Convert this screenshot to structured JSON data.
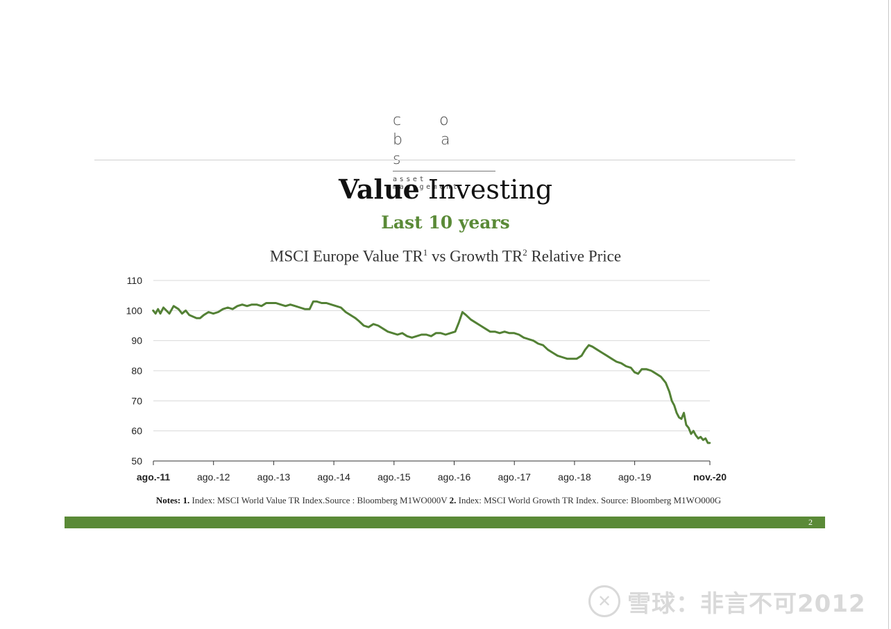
{
  "brand": {
    "name": "c o b a s",
    "tagline": "asset management"
  },
  "title": {
    "bold": "Value",
    "light": "Investing"
  },
  "subtitle": "Last 10 years",
  "chart_title": {
    "part1": "MSCI Europe Value TR",
    "sup1": "1",
    "part2": " vs Growth TR",
    "sup2": "2",
    "part3": " Relative Price"
  },
  "notes": {
    "label": "Notes:",
    "n1": "1.",
    "t1": " Index: MSCI World Value TR Index.Source : Bloomberg M1WO000V ",
    "n2": "2.",
    "t2": " Index: MSCI World Growth TR Index. Source: Bloomberg M1WO000G"
  },
  "page_number": "2",
  "watermark": {
    "icon": "snowball-logo-icon",
    "text": "雪球：非言不可2012"
  },
  "colors": {
    "accent": "#5a8a37",
    "line": "#538135",
    "grid": "#d9d9d9"
  },
  "chart_data": {
    "type": "line",
    "title": "MSCI Europe Value TR1 vs Growth TR2 Relative Price",
    "xlabel": "",
    "ylabel": "",
    "ylim": [
      50,
      110
    ],
    "yticks": [
      50,
      60,
      70,
      80,
      90,
      100,
      110
    ],
    "xticks": [
      {
        "label": "ago.-11",
        "x": 2011.583,
        "bold": true
      },
      {
        "label": "ago.-12",
        "x": 2012.583,
        "bold": false
      },
      {
        "label": "ago.-13",
        "x": 2013.583,
        "bold": false
      },
      {
        "label": "ago.-14",
        "x": 2014.583,
        "bold": false
      },
      {
        "label": "ago.-15",
        "x": 2015.583,
        "bold": false
      },
      {
        "label": "ago.-16",
        "x": 2016.583,
        "bold": false
      },
      {
        "label": "ago.-17",
        "x": 2017.583,
        "bold": false
      },
      {
        "label": "ago.-18",
        "x": 2018.583,
        "bold": false
      },
      {
        "label": "ago.-19",
        "x": 2019.583,
        "bold": false
      },
      {
        "label": "nov.-20",
        "x": 2020.833,
        "bold": true
      }
    ],
    "grid": true,
    "legend": "none",
    "series": [
      {
        "color": "#538135",
        "points": [
          [
            2011.58,
            100
          ],
          [
            2011.62,
            99
          ],
          [
            2011.66,
            100.5
          ],
          [
            2011.7,
            99
          ],
          [
            2011.75,
            101
          ],
          [
            2011.8,
            100
          ],
          [
            2011.85,
            99
          ],
          [
            2011.92,
            101.5
          ],
          [
            2012.0,
            100.5
          ],
          [
            2012.06,
            99
          ],
          [
            2012.12,
            100
          ],
          [
            2012.18,
            98.5
          ],
          [
            2012.24,
            98
          ],
          [
            2012.3,
            97.5
          ],
          [
            2012.36,
            97.5
          ],
          [
            2012.42,
            98.5
          ],
          [
            2012.5,
            99.5
          ],
          [
            2012.58,
            99
          ],
          [
            2012.66,
            99.5
          ],
          [
            2012.74,
            100.5
          ],
          [
            2012.82,
            101
          ],
          [
            2012.9,
            100.5
          ],
          [
            2012.98,
            101.5
          ],
          [
            2013.06,
            102
          ],
          [
            2013.14,
            101.5
          ],
          [
            2013.22,
            102
          ],
          [
            2013.3,
            102
          ],
          [
            2013.38,
            101.5
          ],
          [
            2013.46,
            102.5
          ],
          [
            2013.54,
            102.5
          ],
          [
            2013.62,
            102.5
          ],
          [
            2013.7,
            102
          ],
          [
            2013.78,
            101.5
          ],
          [
            2013.86,
            102
          ],
          [
            2013.94,
            101.5
          ],
          [
            2014.02,
            101
          ],
          [
            2014.1,
            100.5
          ],
          [
            2014.18,
            100.5
          ],
          [
            2014.24,
            103
          ],
          [
            2014.3,
            103
          ],
          [
            2014.38,
            102.5
          ],
          [
            2014.46,
            102.5
          ],
          [
            2014.54,
            102
          ],
          [
            2014.62,
            101.5
          ],
          [
            2014.7,
            101
          ],
          [
            2014.78,
            99.5
          ],
          [
            2014.86,
            98.5
          ],
          [
            2014.94,
            97.5
          ],
          [
            2015.0,
            96.5
          ],
          [
            2015.08,
            95
          ],
          [
            2015.16,
            94.5
          ],
          [
            2015.24,
            95.5
          ],
          [
            2015.32,
            95
          ],
          [
            2015.4,
            94
          ],
          [
            2015.48,
            93
          ],
          [
            2015.56,
            92.5
          ],
          [
            2015.64,
            92
          ],
          [
            2015.72,
            92.5
          ],
          [
            2015.8,
            91.5
          ],
          [
            2015.88,
            91
          ],
          [
            2015.96,
            91.5
          ],
          [
            2016.04,
            92
          ],
          [
            2016.12,
            92
          ],
          [
            2016.2,
            91.5
          ],
          [
            2016.28,
            92.5
          ],
          [
            2016.36,
            92.5
          ],
          [
            2016.44,
            92
          ],
          [
            2016.52,
            92.5
          ],
          [
            2016.6,
            93
          ],
          [
            2016.66,
            96
          ],
          [
            2016.72,
            99.5
          ],
          [
            2016.78,
            98.5
          ],
          [
            2016.86,
            97
          ],
          [
            2016.94,
            96
          ],
          [
            2017.02,
            95
          ],
          [
            2017.1,
            94
          ],
          [
            2017.18,
            93
          ],
          [
            2017.26,
            93
          ],
          [
            2017.34,
            92.5
          ],
          [
            2017.42,
            93
          ],
          [
            2017.5,
            92.5
          ],
          [
            2017.58,
            92.5
          ],
          [
            2017.66,
            92
          ],
          [
            2017.74,
            91
          ],
          [
            2017.82,
            90.5
          ],
          [
            2017.9,
            90
          ],
          [
            2017.98,
            89
          ],
          [
            2018.06,
            88.5
          ],
          [
            2018.14,
            87
          ],
          [
            2018.22,
            86
          ],
          [
            2018.3,
            85
          ],
          [
            2018.38,
            84.5
          ],
          [
            2018.46,
            84
          ],
          [
            2018.54,
            84
          ],
          [
            2018.62,
            84
          ],
          [
            2018.7,
            85
          ],
          [
            2018.76,
            87
          ],
          [
            2018.82,
            88.5
          ],
          [
            2018.88,
            88
          ],
          [
            2018.96,
            87
          ],
          [
            2019.04,
            86
          ],
          [
            2019.12,
            85
          ],
          [
            2019.2,
            84
          ],
          [
            2019.28,
            83
          ],
          [
            2019.36,
            82.5
          ],
          [
            2019.44,
            81.5
          ],
          [
            2019.52,
            81
          ],
          [
            2019.58,
            79.5
          ],
          [
            2019.64,
            79
          ],
          [
            2019.7,
            80.5
          ],
          [
            2019.78,
            80.5
          ],
          [
            2019.86,
            80
          ],
          [
            2019.94,
            79
          ],
          [
            2020.02,
            78
          ],
          [
            2020.1,
            76
          ],
          [
            2020.16,
            73
          ],
          [
            2020.2,
            70
          ],
          [
            2020.24,
            68.5
          ],
          [
            2020.28,
            66
          ],
          [
            2020.32,
            64.5
          ],
          [
            2020.36,
            64
          ],
          [
            2020.4,
            66
          ],
          [
            2020.44,
            62
          ],
          [
            2020.48,
            61
          ],
          [
            2020.52,
            59
          ],
          [
            2020.56,
            60
          ],
          [
            2020.6,
            58.5
          ],
          [
            2020.64,
            57.5
          ],
          [
            2020.68,
            58
          ],
          [
            2020.72,
            57
          ],
          [
            2020.76,
            57.5
          ],
          [
            2020.8,
            56
          ],
          [
            2020.83,
            56
          ]
        ]
      }
    ]
  }
}
